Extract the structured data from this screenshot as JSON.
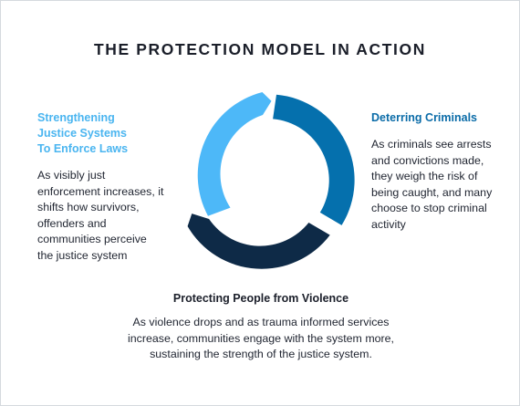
{
  "title": "THE PROTECTION MODEL IN ACTION",
  "colors": {
    "light_blue": "#4db8f8",
    "mid_blue": "#0570ad",
    "navy": "#0e2a47",
    "heading_light": "#4ab5f0",
    "heading_mid": "#0b6ca8",
    "text": "#1f2430"
  },
  "stages": [
    {
      "heading": "Strengthening\nJustice Systems\nTo Enforce Laws",
      "body": "As visibly just enforcement increases, it shifts how survivors, offenders and communities perceive the justice system"
    },
    {
      "heading": "Deterring Criminals",
      "body": "As criminals see arrests and convictions made, they weigh the risk of being caught, and many choose to stop criminal activity"
    },
    {
      "heading": "Protecting People from Violence",
      "body": "As violence drops and as trauma informed services increase, communities engage with the system more, sustaining the strength of the justice system."
    }
  ]
}
